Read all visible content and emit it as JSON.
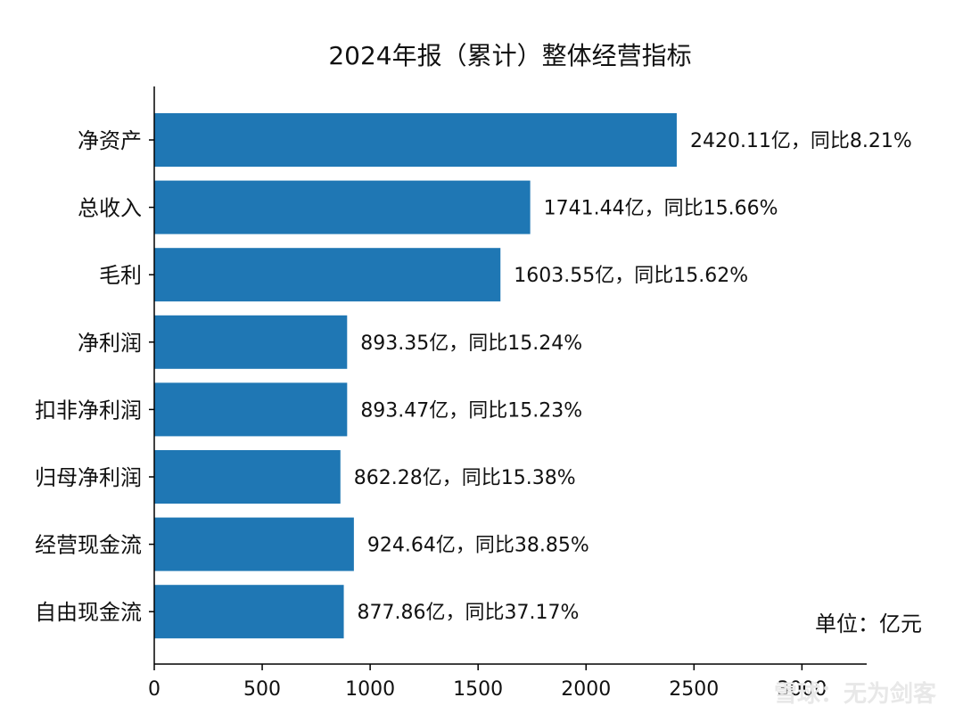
{
  "chart_data": {
    "type": "bar",
    "orientation": "horizontal",
    "title": "2024年报（累计）整体经营指标",
    "unit_label": "单位：亿元",
    "categories": [
      "净资产",
      "总收入",
      "毛利",
      "净利润",
      "扣非净利润",
      "归母净利润",
      "经营现金流",
      "自由现金流"
    ],
    "values": [
      2420.11,
      1741.44,
      1603.55,
      893.35,
      893.47,
      862.28,
      924.64,
      877.86
    ],
    "data_labels": [
      "2420.11亿，同比8.21%",
      "1741.44亿，同比15.66%",
      "1603.55亿，同比15.62%",
      "893.35亿，同比15.24%",
      "893.47亿，同比15.23%",
      "862.28亿，同比15.38%",
      "924.64亿，同比38.85%",
      "877.86亿，同比37.17%"
    ],
    "xlim": [
      0,
      3300
    ],
    "xticks": [
      0,
      500,
      1000,
      1500,
      2000,
      2500,
      3000
    ],
    "bar_color": "#1f77b4",
    "grid": false
  },
  "watermark": "雪球：无为剑客"
}
